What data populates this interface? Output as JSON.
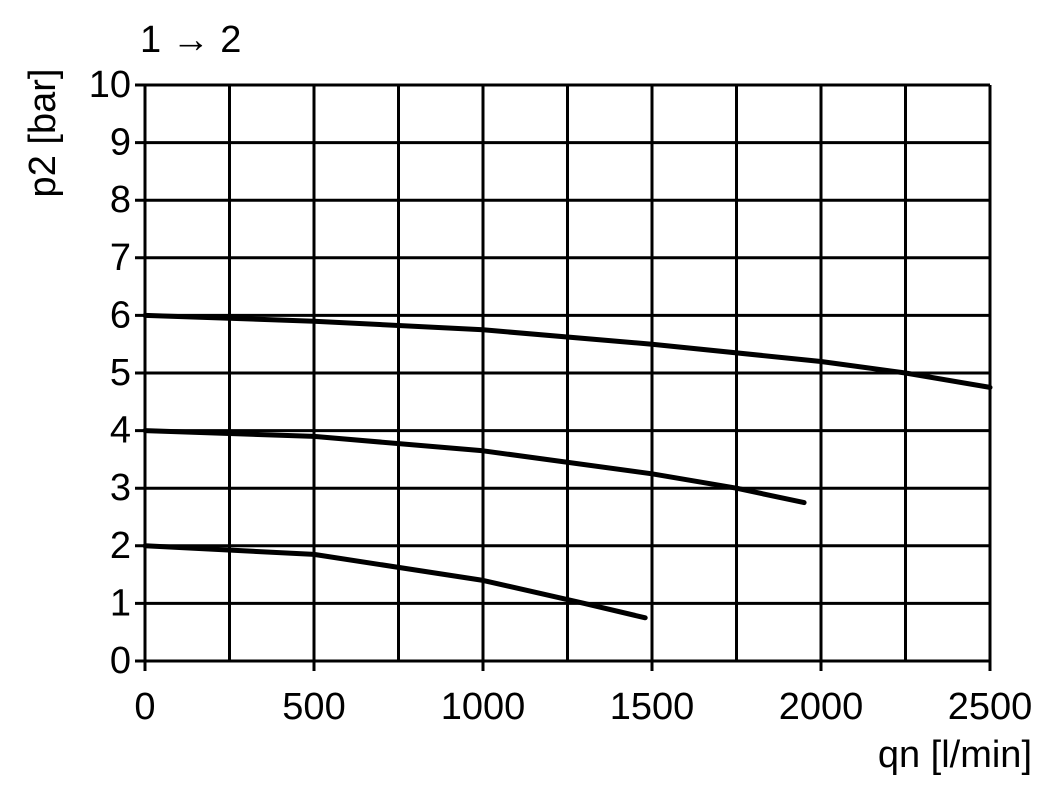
{
  "chart_data": {
    "type": "line",
    "title": "1 → 2",
    "y_label": "p2 [bar]",
    "x_label": "qn [l/min]",
    "xlim": [
      0,
      2500
    ],
    "xticks": [
      0,
      500,
      1000,
      1500,
      2000,
      2500
    ],
    "xgrid_minor": [
      250,
      750,
      1250,
      1750,
      2250
    ],
    "ylim": [
      0,
      10
    ],
    "yticks": [
      0,
      1,
      2,
      3,
      4,
      5,
      6,
      7,
      8,
      9,
      10
    ],
    "grid": true,
    "series": [
      {
        "color": "#000000",
        "x": [
          0,
          500,
          1000,
          1500,
          2000,
          2250,
          2500
        ],
        "values": [
          6,
          5.9,
          5.75,
          5.5,
          5.2,
          5.0,
          4.75
        ]
      },
      {
        "color": "#000000",
        "x": [
          0,
          500,
          1000,
          1500,
          1750,
          1950
        ],
        "values": [
          4,
          3.9,
          3.65,
          3.25,
          3.0,
          2.75
        ]
      },
      {
        "color": "#000000",
        "x": [
          0,
          500,
          1000,
          1300,
          1480
        ],
        "values": [
          2,
          1.85,
          1.4,
          1.0,
          0.75
        ]
      }
    ]
  }
}
